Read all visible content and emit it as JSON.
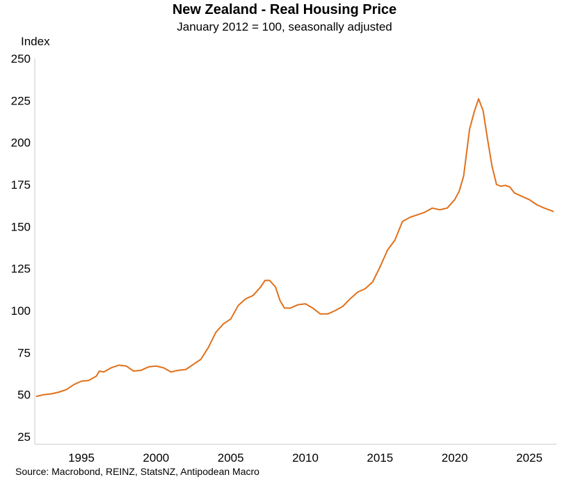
{
  "chart_data": {
    "type": "line",
    "title": "New Zealand - Real Housing Price",
    "subtitle": "January 2012 = 100, seasonally adjusted",
    "ylabel": "Index",
    "xlabel": "",
    "ylim": [
      20,
      250
    ],
    "xlim": [
      1992.0,
      2026.9
    ],
    "yticks": [
      25,
      50,
      75,
      100,
      125,
      150,
      175,
      200,
      225,
      250
    ],
    "xticks": [
      1995,
      2000,
      2005,
      2010,
      2015,
      2020,
      2025
    ],
    "grid": false,
    "legend": "none",
    "source": "Source: Macrobond, REINZ, StatsNZ, Antipodean Macro",
    "series": [
      {
        "color": "#E0701A",
        "x": [
          1992.0,
          1992.5,
          1993.0,
          1993.5,
          1994.0,
          1994.5,
          1995.0,
          1995.5,
          1996.0,
          1996.2,
          1996.5,
          1997.0,
          1997.5,
          1998.0,
          1998.5,
          1999.0,
          1999.5,
          2000.0,
          2000.5,
          2001.0,
          2001.5,
          2002.0,
          2002.5,
          2003.0,
          2003.5,
          2004.0,
          2004.5,
          2005.0,
          2005.5,
          2006.0,
          2006.5,
          2007.0,
          2007.3,
          2007.6,
          2008.0,
          2008.3,
          2008.6,
          2009.0,
          2009.5,
          2010.0,
          2010.5,
          2011.0,
          2011.5,
          2012.0,
          2012.5,
          2013.0,
          2013.5,
          2014.0,
          2014.5,
          2015.0,
          2015.5,
          2016.0,
          2016.5,
          2017.0,
          2017.5,
          2018.0,
          2018.5,
          2019.0,
          2019.5,
          2020.0,
          2020.3,
          2020.6,
          2021.0,
          2021.3,
          2021.6,
          2021.9,
          2022.2,
          2022.5,
          2022.8,
          2023.1,
          2023.4,
          2023.7,
          2024.0,
          2024.5,
          2025.0,
          2025.5,
          2026.0,
          2026.3,
          2026.6
        ],
        "y": [
          49,
          50,
          50.5,
          51.5,
          53,
          56,
          58,
          58.5,
          61,
          64,
          63.5,
          66,
          67.5,
          67,
          64,
          64.5,
          66.5,
          67,
          66,
          63.5,
          64.5,
          65,
          68,
          71,
          78,
          87,
          92,
          95,
          103,
          107,
          109,
          114,
          118,
          118,
          114,
          106,
          101.5,
          101.5,
          103.5,
          104,
          101.5,
          98,
          98,
          100,
          102.5,
          107,
          111,
          113,
          117,
          126,
          136,
          142,
          153,
          155.5,
          157,
          158.5,
          161,
          160,
          161,
          166,
          171,
          180,
          208,
          218,
          226,
          219,
          202,
          186,
          175,
          174,
          174.5,
          173.5,
          170,
          168,
          166,
          163,
          161,
          160,
          159
        ]
      }
    ]
  }
}
